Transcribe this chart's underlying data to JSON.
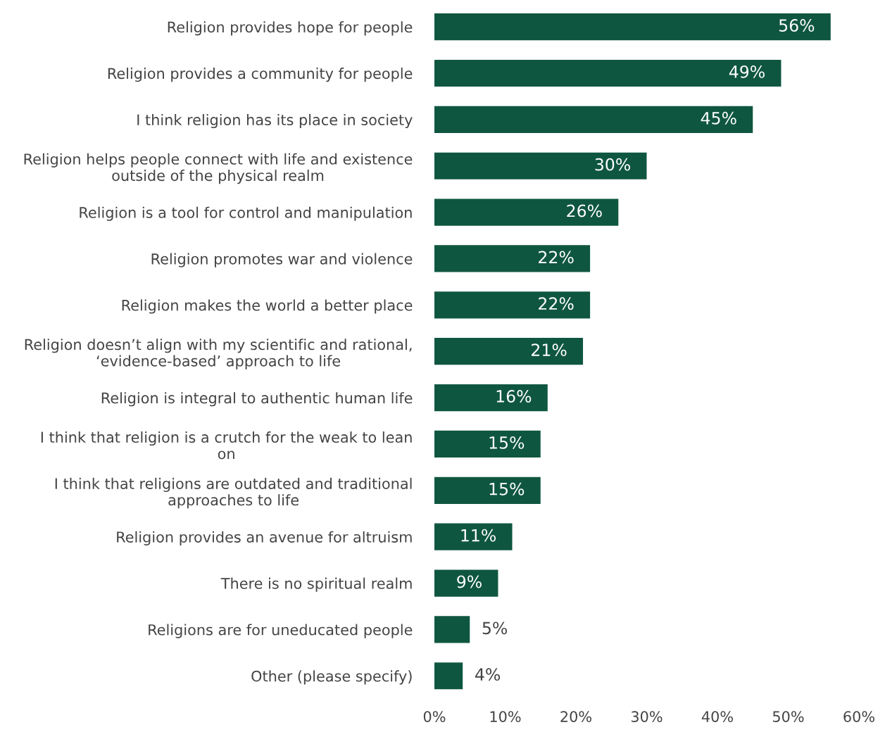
{
  "chart_data": {
    "type": "bar",
    "orientation": "horizontal",
    "categories": [
      "Religion provides hope for people",
      "Religion provides a community for people",
      "I think religion has its place in society",
      "Religion helps people connect with life and existence\noutside of the physical realm",
      "Religion is a tool for control and manipulation",
      "Religion promotes war and violence",
      "Religion makes the world a better place",
      "Religion doesn’t align with my scientific and rational,\n‘evidence-based’ approach to life",
      "Religion is integral to authentic human life",
      "I think that religion is a crutch for the weak to lean\non",
      "I think that religions are outdated and traditional\napproaches to life",
      "Religion provides an avenue for altruism",
      "There is no spiritual realm",
      "Religions are for uneducated people",
      "Other (please specify)"
    ],
    "values": [
      56,
      49,
      45,
      30,
      26,
      22,
      22,
      21,
      16,
      15,
      15,
      11,
      9,
      5,
      4
    ],
    "value_labels": [
      "56%",
      "49%",
      "45%",
      "30%",
      "26%",
      "22%",
      "22%",
      "21%",
      "16%",
      "15%",
      "15%",
      "11%",
      "9%",
      "5%",
      "4%"
    ],
    "color": "#0f5640",
    "xlim": [
      0,
      60
    ],
    "xticks": [
      {
        "value": 0,
        "label": "0%"
      },
      {
        "value": 10,
        "label": "10%"
      },
      {
        "value": 20,
        "label": "20%"
      },
      {
        "value": 30,
        "label": "30%"
      },
      {
        "value": 40,
        "label": "40%"
      },
      {
        "value": 50,
        "label": "50%"
      },
      {
        "value": 60,
        "label": "60%"
      }
    ],
    "grid": false,
    "legend": false
  }
}
